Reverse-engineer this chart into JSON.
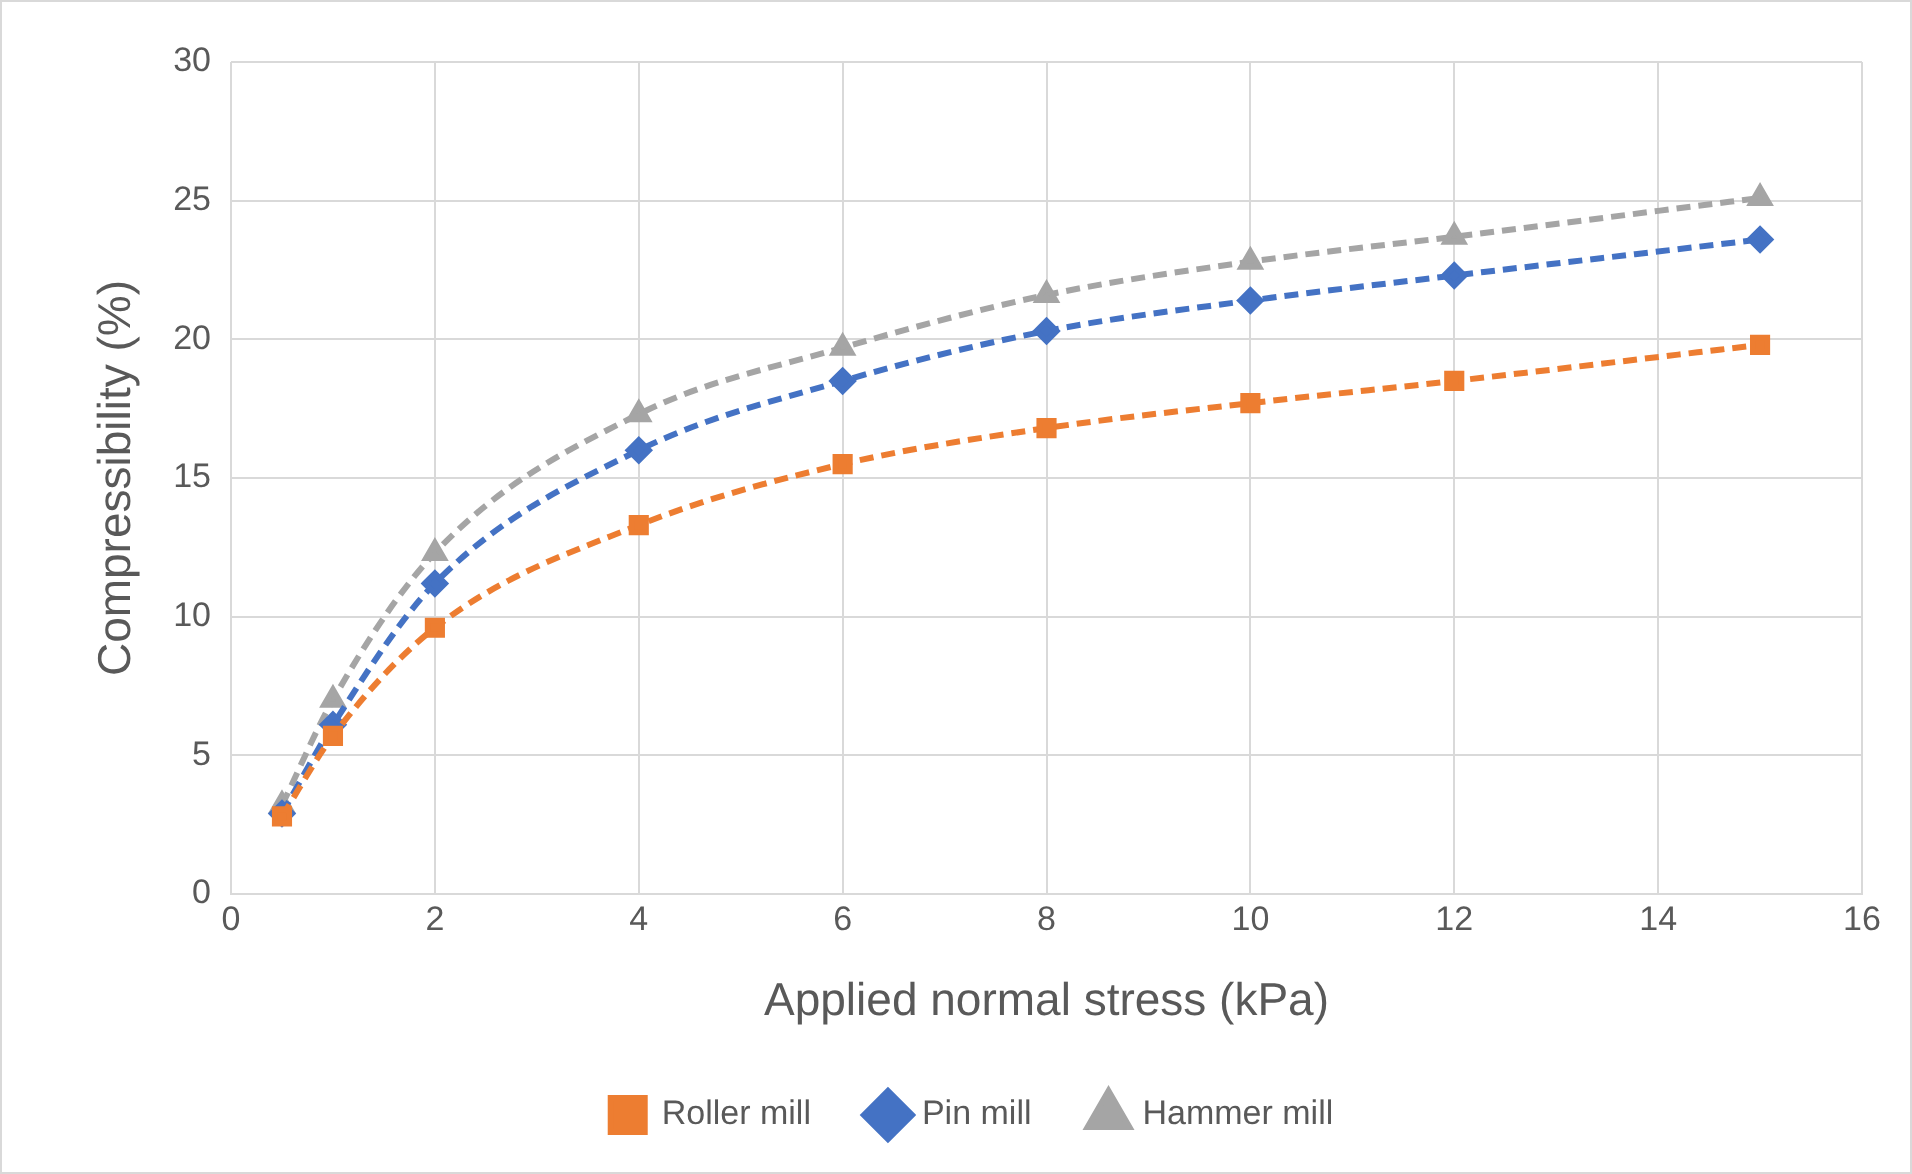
{
  "chart_data": {
    "type": "line",
    "xlabel": "Applied normal stress (kPa)",
    "ylabel": "Compressibility (%)",
    "x": [
      0.5,
      1,
      2,
      4,
      6,
      8,
      10,
      12,
      15
    ],
    "series": [
      {
        "name": "Roller mill",
        "color": "#ed7d31",
        "marker": "square",
        "values": [
          2.8,
          5.7,
          9.6,
          13.3,
          15.5,
          16.8,
          17.7,
          18.5,
          19.8
        ]
      },
      {
        "name": "Pin mill",
        "color": "#4472c4",
        "marker": "diamond",
        "values": [
          2.9,
          6.1,
          11.2,
          16.0,
          18.5,
          20.3,
          21.4,
          22.3,
          23.6
        ]
      },
      {
        "name": "Hammer mill",
        "color": "#a5a5a5",
        "marker": "triangle",
        "values": [
          3.2,
          7.0,
          12.3,
          17.3,
          19.7,
          21.6,
          22.8,
          23.7,
          25.1
        ]
      }
    ],
    "xlim": [
      0,
      16
    ],
    "xticks": [
      0,
      2,
      4,
      6,
      8,
      10,
      12,
      14,
      16
    ],
    "ylim": [
      0,
      30
    ],
    "yticks": [
      0,
      5,
      10,
      15,
      20,
      25,
      30
    ],
    "grid": true,
    "legend": "bottom",
    "line_style": "dashed"
  }
}
